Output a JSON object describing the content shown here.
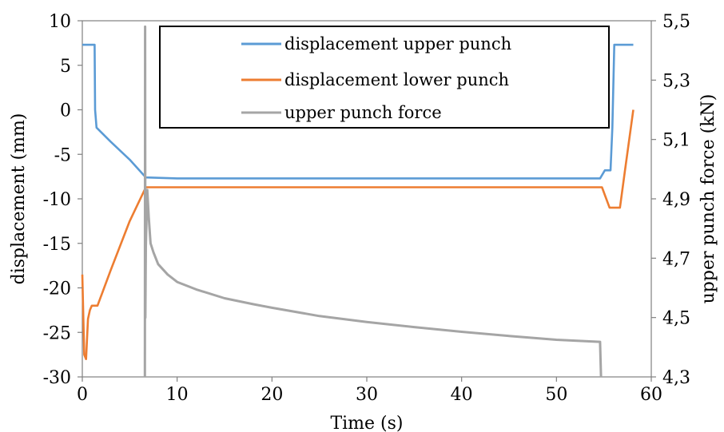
{
  "chart_data": {
    "type": "line",
    "title": "",
    "xlabel": "Time (s)",
    "ylabel": "displacement (mm)",
    "y2label": "upper punch force (kN)",
    "xlim": [
      0,
      60
    ],
    "ylim": [
      -30,
      10
    ],
    "y2lim": [
      4.3,
      5.5
    ],
    "x_ticks": [
      "0",
      "10",
      "20",
      "30",
      "40",
      "50",
      "60"
    ],
    "y_ticks": [
      "-30",
      "-25",
      "-20",
      "-15",
      "-10",
      "-5",
      "0",
      "5",
      "10"
    ],
    "y2_ticks": [
      "4,3",
      "4,5",
      "4,7",
      "4,9",
      "5,1",
      "5,3",
      "5,5"
    ],
    "grid": false,
    "legend_position": "top-center",
    "series": [
      {
        "name": "displacement upper punch",
        "axis": "left",
        "color": "#5B9BD5",
        "points": [
          [
            0.0,
            7.3
          ],
          [
            1.3,
            7.3
          ],
          [
            1.35,
            0.0
          ],
          [
            1.5,
            -2.0
          ],
          [
            3.0,
            -3.6
          ],
          [
            5.0,
            -5.6
          ],
          [
            6.7,
            -7.6
          ],
          [
            10,
            -7.7
          ],
          [
            20,
            -7.7
          ],
          [
            30,
            -7.7
          ],
          [
            40,
            -7.7
          ],
          [
            50,
            -7.7
          ],
          [
            54.6,
            -7.7
          ],
          [
            55.1,
            -6.8
          ],
          [
            55.7,
            -6.8
          ],
          [
            55.9,
            -2.0
          ],
          [
            56.1,
            7.3
          ],
          [
            58.1,
            7.3
          ]
        ]
      },
      {
        "name": "displacement lower punch",
        "axis": "left",
        "color": "#ED7D31",
        "points": [
          [
            0.0,
            -18.5
          ],
          [
            0.2,
            -27.5
          ],
          [
            0.4,
            -28.0
          ],
          [
            0.6,
            -23.5
          ],
          [
            0.8,
            -22.5
          ],
          [
            1.0,
            -22.0
          ],
          [
            1.6,
            -22.0
          ],
          [
            3.0,
            -18.0
          ],
          [
            5.0,
            -12.5
          ],
          [
            6.7,
            -8.7
          ],
          [
            10,
            -8.7
          ],
          [
            20,
            -8.7
          ],
          [
            30,
            -8.7
          ],
          [
            40,
            -8.7
          ],
          [
            50,
            -8.7
          ],
          [
            54.8,
            -8.7
          ],
          [
            55.6,
            -11.0
          ],
          [
            56.7,
            -11.0
          ],
          [
            57.2,
            -7.0
          ],
          [
            58.1,
            0.0
          ]
        ]
      },
      {
        "name": "upper punch force",
        "axis": "right",
        "color": "#A5A5A5",
        "points": [
          [
            6.6,
            4.3
          ],
          [
            6.62,
            5.48
          ],
          [
            6.65,
            4.5
          ],
          [
            6.7,
            4.74
          ],
          [
            6.85,
            4.93
          ],
          [
            7.0,
            4.84
          ],
          [
            7.2,
            4.75
          ],
          [
            7.5,
            4.72
          ],
          [
            8,
            4.68
          ],
          [
            9,
            4.645
          ],
          [
            10,
            4.62
          ],
          [
            12,
            4.595
          ],
          [
            15,
            4.565
          ],
          [
            18,
            4.545
          ],
          [
            20,
            4.533
          ],
          [
            25,
            4.505
          ],
          [
            30,
            4.485
          ],
          [
            35,
            4.468
          ],
          [
            40,
            4.452
          ],
          [
            45,
            4.438
          ],
          [
            50,
            4.425
          ],
          [
            54.6,
            4.418
          ],
          [
            54.7,
            4.3
          ]
        ]
      }
    ]
  }
}
